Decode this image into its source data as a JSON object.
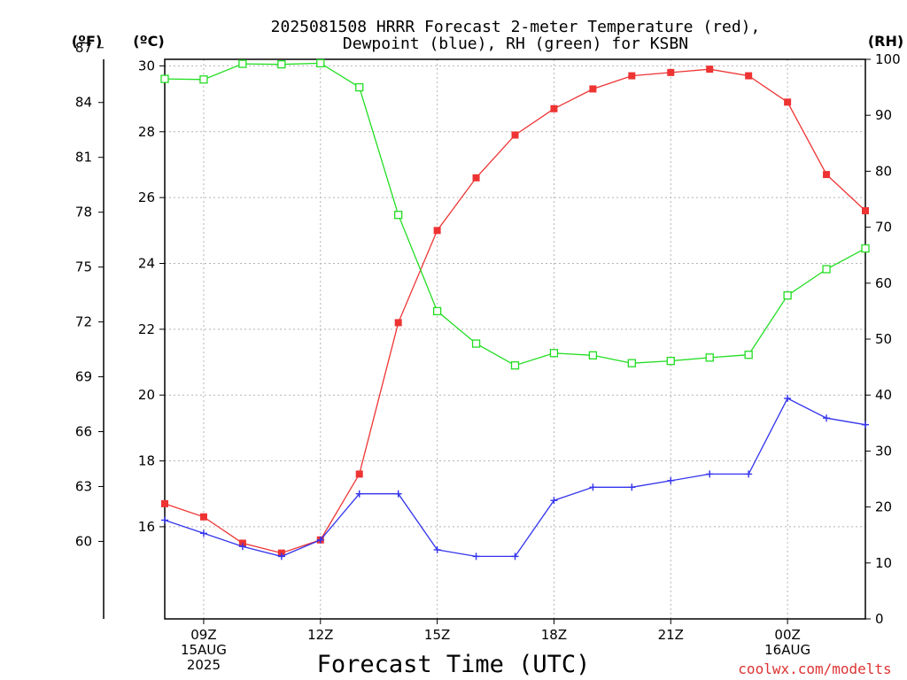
{
  "chart_data": {
    "type": "line",
    "title_line1": "2025081508 HRRR Forecast 2-meter Temperature (red),",
    "title_line2": "Dewpoint (blue), RH (green) for KSBN",
    "xlabel": "Forecast Time (UTC)",
    "credit": "coolwx.com/modelts",
    "unit_labels": {
      "fahrenheit": "(ºF)",
      "celsius": "(ºC)",
      "rh": "(RH)"
    },
    "x_hours": [
      8,
      9,
      10,
      11,
      12,
      13,
      14,
      15,
      16,
      17,
      18,
      19,
      20,
      21,
      22,
      23,
      24,
      25,
      26
    ],
    "xlim": [
      8,
      26
    ],
    "x_ticks": [
      {
        "hour": 9,
        "lines": [
          "09Z",
          "15AUG",
          "2025"
        ]
      },
      {
        "hour": 12,
        "lines": [
          "12Z"
        ]
      },
      {
        "hour": 15,
        "lines": [
          "15Z"
        ]
      },
      {
        "hour": 18,
        "lines": [
          "18Z"
        ]
      },
      {
        "hour": 21,
        "lines": [
          "21Z"
        ]
      },
      {
        "hour": 24,
        "lines": [
          "00Z",
          "16AUG"
        ]
      }
    ],
    "ylim_celsius": [
      13.2,
      30.2
    ],
    "ylim_rh": [
      0,
      100
    ],
    "celsius_ticks": [
      16,
      18,
      20,
      22,
      24,
      26,
      28,
      30
    ],
    "fahrenheit_ticks": [
      60,
      63,
      66,
      69,
      72,
      75,
      78,
      81,
      84,
      87
    ],
    "rh_ticks": [
      0,
      10,
      20,
      30,
      40,
      50,
      60,
      70,
      80,
      90,
      100
    ],
    "grid": true,
    "series": [
      {
        "key": "temp",
        "color": "#ee3333",
        "marker": "filled-square",
        "values": [
          16.7,
          16.3,
          15.5,
          15.2,
          15.6,
          17.6,
          22.2,
          25.0,
          26.6,
          27.9,
          28.7,
          29.3,
          29.7,
          29.8,
          29.9,
          29.7,
          28.9,
          26.7,
          25.6
        ]
      },
      {
        "key": "dewpoint",
        "color": "#3333ee",
        "marker": "plus",
        "values": [
          16.2,
          15.8,
          15.4,
          15.1,
          15.6,
          17.0,
          17.0,
          15.3,
          15.1,
          15.1,
          16.8,
          17.2,
          17.2,
          17.4,
          17.6,
          17.6,
          19.9,
          19.3,
          19.1
        ]
      },
      {
        "key": "rh",
        "color": "#22dd22",
        "marker": "open-square",
        "values": [
          96.5,
          96.4,
          99.2,
          99.1,
          99.3,
          95.0,
          72.2,
          55.0,
          49.2,
          45.3,
          47.5,
          47.1,
          45.7,
          46.1,
          46.7,
          47.2,
          57.8,
          62.5,
          66.2
        ]
      }
    ]
  }
}
